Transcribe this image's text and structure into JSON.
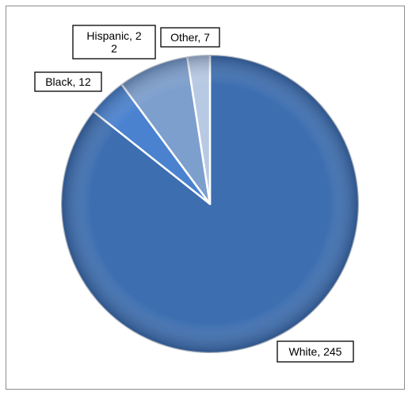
{
  "chart_data": {
    "type": "pie",
    "categories": [
      "White",
      "Black",
      "Hispanic",
      "Other"
    ],
    "values": [
      245,
      12,
      22,
      7
    ],
    "labels": [
      [
        "White, 245"
      ],
      [
        "Black, 12"
      ],
      [
        "Hispanic, 2",
        "2"
      ],
      [
        "Other, 7"
      ]
    ],
    "colors": [
      "#3d6eb0",
      "#4a82cf",
      "#7d9fcd",
      "#b8c9e3"
    ],
    "legend": "none"
  }
}
